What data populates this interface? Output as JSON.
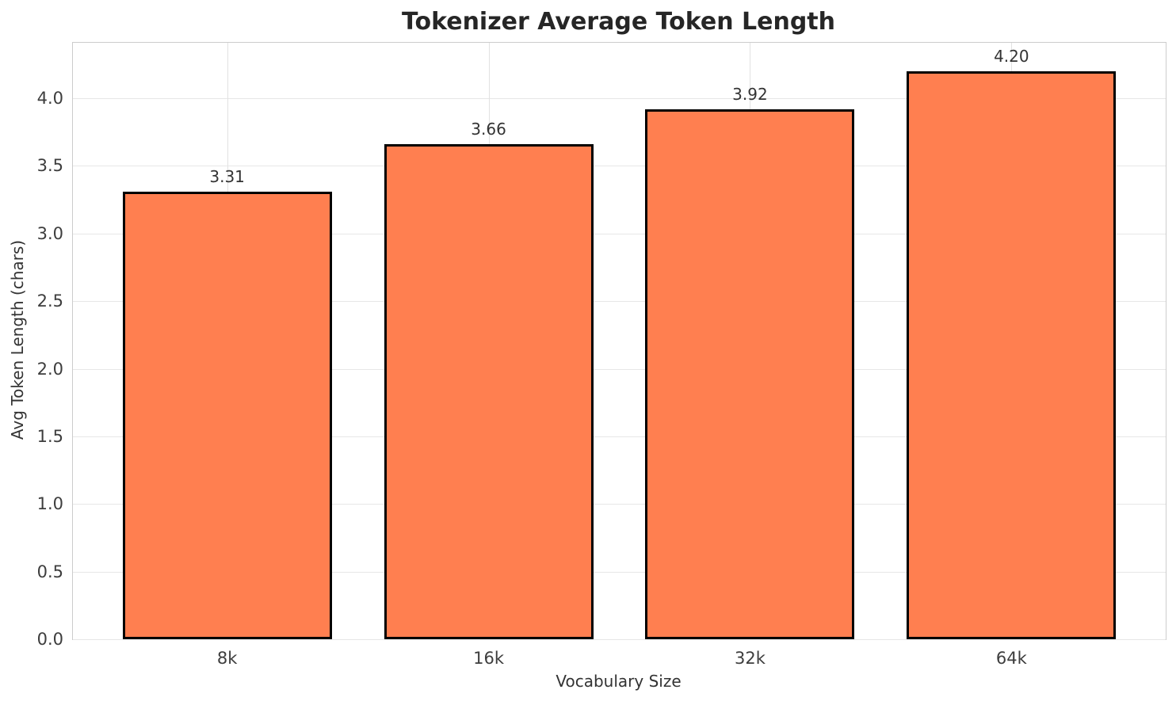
{
  "chart": {
    "title": "Tokenizer Average Token Length",
    "xlabel": "Vocabulary Size",
    "ylabel": "Avg Token Length (chars)"
  },
  "chart_data": {
    "type": "bar",
    "title": "Tokenizer Average Token Length",
    "xlabel": "Vocabulary Size",
    "ylabel": "Avg Token Length (chars)",
    "categories": [
      "8k",
      "16k",
      "32k",
      "64k"
    ],
    "values": [
      3.31,
      3.66,
      3.92,
      4.2
    ],
    "value_labels": [
      "3.31",
      "3.66",
      "3.92",
      "4.20"
    ],
    "yticks": [
      0.0,
      0.5,
      1.0,
      1.5,
      2.0,
      2.5,
      3.0,
      3.5,
      4.0
    ],
    "ytick_labels": [
      "0.0",
      "0.5",
      "1.0",
      "1.5",
      "2.0",
      "2.5",
      "3.0",
      "3.5",
      "4.0"
    ],
    "ylim": [
      0,
      4.41
    ],
    "grid": true,
    "legend": null,
    "bar_width_data_units": 0.8,
    "colors": {
      "bar_fill": "#FF7F50",
      "bar_edge": "#000000",
      "grid": "#e5e5e5",
      "spine": "#cccccc",
      "title_text": "#262626",
      "tick_text": "#3d3d3d",
      "background": "#ffffff"
    }
  }
}
